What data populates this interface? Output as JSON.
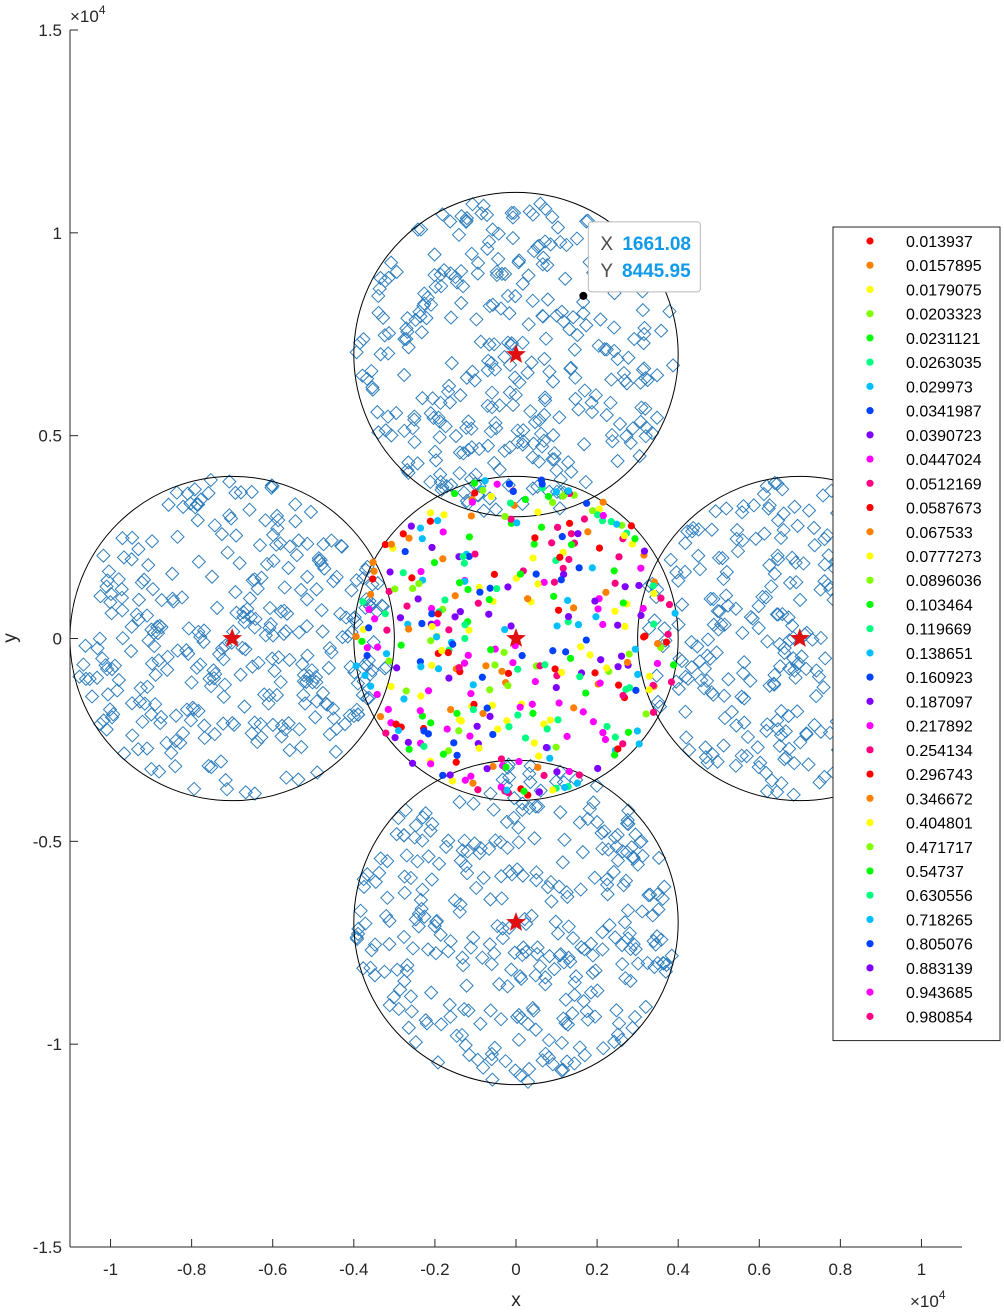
{
  "chart_data": {
    "type": "scatter",
    "xlabel": "x",
    "ylabel": "y",
    "x_exponent_label": "×10",
    "x_exponent": "4",
    "y_exponent_label": "×10",
    "y_exponent": "4",
    "xlim": [
      -11000,
      11000
    ],
    "ylim": [
      -15000,
      15000
    ],
    "xticks": [
      -10000,
      -8000,
      -6000,
      -4000,
      -2000,
      0,
      2000,
      4000,
      6000,
      8000,
      10000
    ],
    "xtick_labels": [
      "-1",
      "-0.8",
      "-0.6",
      "-0.4",
      "-0.2",
      "0",
      "0.2",
      "0.4",
      "0.6",
      "0.8",
      "1"
    ],
    "yticks": [
      -15000,
      -10000,
      -5000,
      0,
      5000,
      10000,
      15000
    ],
    "ytick_labels": [
      "-1.5",
      "-1",
      "-0.5",
      "0",
      "0.5",
      "1",
      "1.5"
    ],
    "grid": false,
    "legend_position": "right",
    "cells": [
      {
        "cx": 0,
        "cy": 0,
        "r": 4000
      },
      {
        "cx": 0,
        "cy": 7000,
        "r": 4000
      },
      {
        "cx": -7000,
        "cy": 0,
        "r": 4000
      },
      {
        "cx": 7000,
        "cy": 0,
        "r": 4000
      },
      {
        "cx": 0,
        "cy": -7000,
        "r": 4000
      }
    ],
    "base_stations": [
      {
        "x": 0,
        "y": 0
      },
      {
        "x": 0,
        "y": 7000
      },
      {
        "x": -7000,
        "y": 0
      },
      {
        "x": 7000,
        "y": 0
      },
      {
        "x": 0,
        "y": -7000
      }
    ],
    "interferer_cells": [
      {
        "cx": 0,
        "cy": 7000,
        "n": 330
      },
      {
        "cx": -7000,
        "cy": 0,
        "n": 330
      },
      {
        "cx": 7000,
        "cy": 0,
        "n": 330
      },
      {
        "cx": 0,
        "cy": -7000,
        "n": 330
      }
    ],
    "center_users": {
      "cx": 0,
      "cy": 0,
      "r": 4000,
      "n": 420
    },
    "series": [
      {
        "name": "0.013937",
        "color": "#ff0000"
      },
      {
        "name": "0.0157895",
        "color": "#ff8000"
      },
      {
        "name": "0.0179075",
        "color": "#ffff00"
      },
      {
        "name": "0.0203323",
        "color": "#80ff00"
      },
      {
        "name": "0.0231121",
        "color": "#00ff00"
      },
      {
        "name": "0.0263035",
        "color": "#00ff80"
      },
      {
        "name": "0.029973",
        "color": "#00bfff"
      },
      {
        "name": "0.0341987",
        "color": "#0040ff"
      },
      {
        "name": "0.0390723",
        "color": "#8000ff"
      },
      {
        "name": "0.0447024",
        "color": "#ff00ff"
      },
      {
        "name": "0.0512169",
        "color": "#ff0080"
      },
      {
        "name": "0.0587673",
        "color": "#ff0000"
      },
      {
        "name": "0.067533",
        "color": "#ff8000"
      },
      {
        "name": "0.0777273",
        "color": "#ffff00"
      },
      {
        "name": "0.0896036",
        "color": "#80ff00"
      },
      {
        "name": "0.103464",
        "color": "#00ff00"
      },
      {
        "name": "0.119669",
        "color": "#00ff80"
      },
      {
        "name": "0.138651",
        "color": "#00bfff"
      },
      {
        "name": "0.160923",
        "color": "#0040ff"
      },
      {
        "name": "0.187097",
        "color": "#8000ff"
      },
      {
        "name": "0.217892",
        "color": "#ff00ff"
      },
      {
        "name": "0.254134",
        "color": "#ff0080"
      },
      {
        "name": "0.296743",
        "color": "#ff0000"
      },
      {
        "name": "0.346672",
        "color": "#ff8000"
      },
      {
        "name": "0.404801",
        "color": "#ffff00"
      },
      {
        "name": "0.471717",
        "color": "#80ff00"
      },
      {
        "name": "0.54737",
        "color": "#00ff00"
      },
      {
        "name": "0.630556",
        "color": "#00ff80"
      },
      {
        "name": "0.718265",
        "color": "#00bfff"
      },
      {
        "name": "0.805076",
        "color": "#0040ff"
      },
      {
        "name": "0.883139",
        "color": "#8000ff"
      },
      {
        "name": "0.943685",
        "color": "#ff00ff"
      },
      {
        "name": "0.980854",
        "color": "#ff0080"
      }
    ],
    "datatip": {
      "x_label": "X",
      "x_value": "1661.08",
      "y_label": "Y",
      "y_value": "8445.95",
      "point": {
        "x": 1661.08,
        "y": 8445.95
      }
    },
    "colors": {
      "axis": "#262626",
      "circle": "#000000",
      "diamond": "#2e7ebd",
      "star": "#e01010",
      "datatip_value": "#0f9bea"
    }
  }
}
